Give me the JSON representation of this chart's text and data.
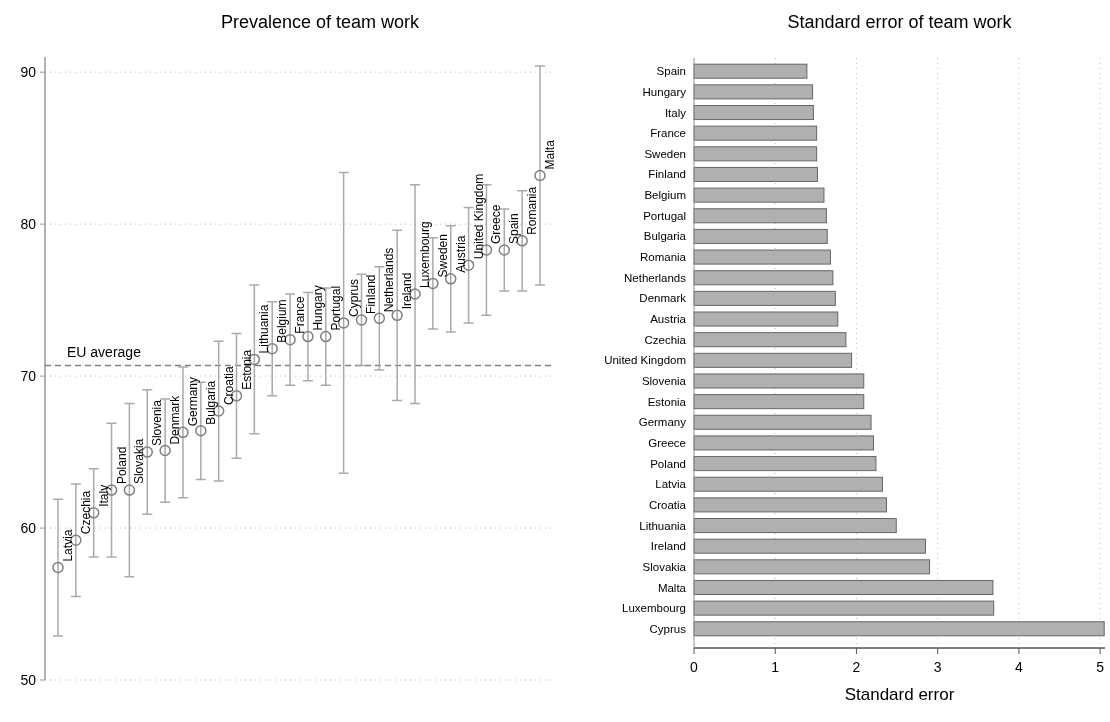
{
  "chart_data": [
    {
      "type": "scatter",
      "title": "Prevalence of team work",
      "categories": [
        null,
        null,
        null,
        null,
        null,
        null,
        null,
        null,
        null,
        null,
        null,
        null,
        null,
        null,
        null,
        null,
        null,
        null,
        null,
        null,
        null,
        null,
        null,
        null,
        null,
        null,
        null,
        null
      ],
      "annotations": [
        {
          "text": "Latvia",
          "y": 57.4
        },
        {
          "text": "Czechia",
          "y": 59.2
        },
        {
          "text": "Italy",
          "y": 61.0
        },
        {
          "text": "Poland",
          "y": 62.5
        },
        {
          "text": "Slovakia",
          "y": 62.5
        },
        {
          "text": "Slovenia",
          "y": 65.0
        },
        {
          "text": "Denmark",
          "y": 65.1
        },
        {
          "text": "Germany",
          "y": 66.3
        },
        {
          "text": "Bulgaria",
          "y": 66.4
        },
        {
          "text": "Croatia",
          "y": 67.7
        },
        {
          "text": "Estonia",
          "y": 68.7
        },
        {
          "text": "Lithuania",
          "y": 71.1
        },
        {
          "text": "Belgium",
          "y": 71.8
        },
        {
          "text": "France",
          "y": 72.4
        },
        {
          "text": "Hungary",
          "y": 72.6
        },
        {
          "text": "Portugal",
          "y": 72.6
        },
        {
          "text": "Cyprus",
          "y": 73.5
        },
        {
          "text": "Finland",
          "y": 73.7
        },
        {
          "text": "Netherlands",
          "y": 73.8
        },
        {
          "text": "Ireland",
          "y": 74.0
        },
        {
          "text": "Luxembourg",
          "y": 75.4
        },
        {
          "text": "Sweden",
          "y": 76.1
        },
        {
          "text": "Austria",
          "y": 76.4
        },
        {
          "text": "United Kingdom",
          "y": 77.3
        },
        {
          "text": "Greece",
          "y": 78.3
        },
        {
          "text": "Spain",
          "y": 78.3
        },
        {
          "text": "Romania",
          "y": 78.9
        },
        {
          "text": "Malta",
          "y": 83.2
        }
      ],
      "series": [
        {
          "color": "#808080",
          "values": [
            57.4,
            59.2,
            61.0,
            62.5,
            62.5,
            65.0,
            65.1,
            66.3,
            66.4,
            67.7,
            68.7,
            71.1,
            71.8,
            72.4,
            72.6,
            72.6,
            73.5,
            73.7,
            73.8,
            74.0,
            75.4,
            76.1,
            76.4,
            77.3,
            78.3,
            78.3,
            78.9,
            83.2
          ],
          "errors": [
            4.5,
            3.7,
            2.9,
            4.4,
            5.7,
            4.1,
            3.4,
            4.3,
            3.2,
            4.6,
            4.1,
            4.9,
            3.1,
            3.0,
            2.9,
            3.2,
            9.9,
            3.0,
            3.4,
            5.6,
            7.2,
            3.0,
            3.5,
            3.8,
            4.3,
            2.7,
            3.3,
            7.2
          ]
        }
      ],
      "ylim": [
        50,
        91
      ],
      "yticks": [
        50,
        60,
        70,
        80,
        90
      ],
      "grid": "y",
      "marker": "circle",
      "ref_lines": [
        {
          "axis": "y",
          "value": 70.7,
          "label": "EU average",
          "color": "#808080",
          "line_style": "dashed"
        }
      ]
    },
    {
      "type": "bar",
      "orientation": "horizontal",
      "title": "Standard error of team work",
      "xlabel": "Standard error",
      "categories": [
        "Spain",
        "Hungary",
        "Italy",
        "France",
        "Sweden",
        "Finland",
        "Belgium",
        "Portugal",
        "Bulgaria",
        "Romania",
        "Netherlands",
        "Denmark",
        "Austria",
        "Czechia",
        "United Kingdom",
        "Slovenia",
        "Estonia",
        "Germany",
        "Greece",
        "Poland",
        "Latvia",
        "Croatia",
        "Lithuania",
        "Ireland",
        "Slovakia",
        "Malta",
        "Luxembourg",
        "Cyprus"
      ],
      "series": [
        {
          "color": "#b0b0b0",
          "values": [
            1.39,
            1.46,
            1.47,
            1.51,
            1.51,
            1.52,
            1.6,
            1.63,
            1.64,
            1.68,
            1.71,
            1.74,
            1.77,
            1.87,
            1.94,
            2.09,
            2.09,
            2.18,
            2.21,
            2.24,
            2.32,
            2.37,
            2.49,
            2.85,
            2.9,
            3.68,
            3.69,
            5.05
          ]
        }
      ],
      "xlim": [
        0,
        5.06
      ],
      "xticks": [
        0,
        1,
        2,
        3,
        4,
        5
      ],
      "grid": "x"
    }
  ]
}
